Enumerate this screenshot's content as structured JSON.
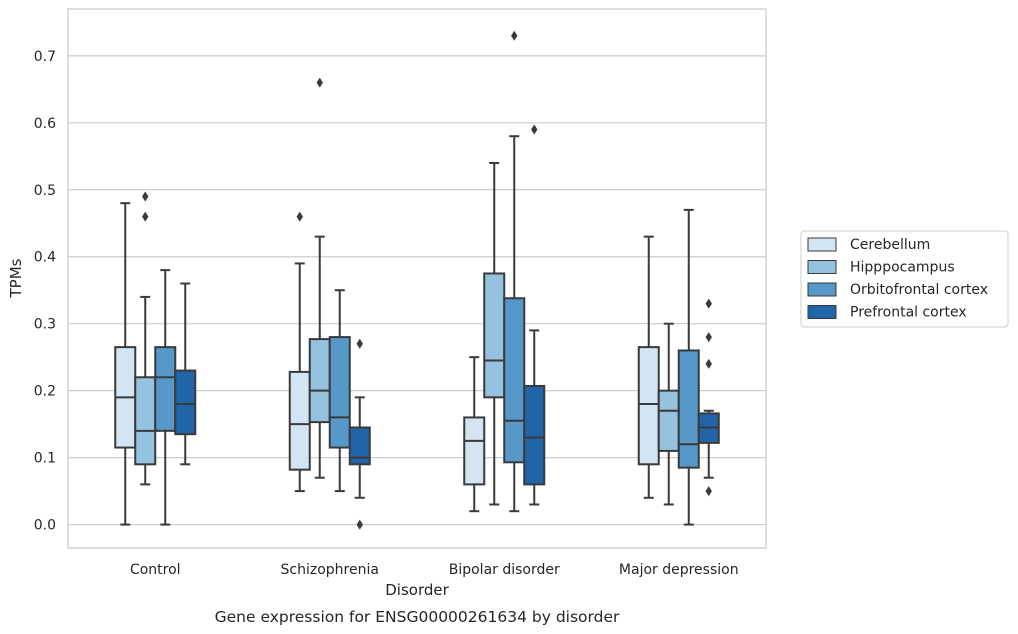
{
  "chart_data": {
    "type": "box",
    "title": "",
    "caption": "Gene expression for ENSG00000261634 by disorder",
    "xlabel": "Disorder",
    "ylabel": "TPMs",
    "ylim": [
      -0.035,
      0.77
    ],
    "yticks": [
      "0.0",
      "0.1",
      "0.2",
      "0.3",
      "0.4",
      "0.5",
      "0.6",
      "0.7"
    ],
    "grid": true,
    "legend_position": "right",
    "categories": [
      "Control",
      "Schizophrenia",
      "Bipolar disorder",
      "Major depression"
    ],
    "series": [
      {
        "name": "Cerebellum",
        "color": "#d3e4f3",
        "boxes": [
          {
            "whisker_low": 0.0,
            "q1": 0.115,
            "median": 0.19,
            "q3": 0.265,
            "whisker_high": 0.48,
            "outliers": []
          },
          {
            "whisker_low": 0.05,
            "q1": 0.082,
            "median": 0.15,
            "q3": 0.228,
            "whisker_high": 0.39,
            "outliers": [
              0.46
            ]
          },
          {
            "whisker_low": 0.02,
            "q1": 0.06,
            "median": 0.125,
            "q3": 0.16,
            "whisker_high": 0.25,
            "outliers": []
          },
          {
            "whisker_low": 0.04,
            "q1": 0.09,
            "median": 0.18,
            "q3": 0.265,
            "whisker_high": 0.43,
            "outliers": []
          }
        ]
      },
      {
        "name": "Hipppocampus",
        "color": "#94c2df",
        "boxes": [
          {
            "whisker_low": 0.06,
            "q1": 0.09,
            "median": 0.14,
            "q3": 0.22,
            "whisker_high": 0.34,
            "outliers": [
              0.46,
              0.49
            ]
          },
          {
            "whisker_low": 0.07,
            "q1": 0.153,
            "median": 0.2,
            "q3": 0.277,
            "whisker_high": 0.43,
            "outliers": [
              0.66
            ]
          },
          {
            "whisker_low": 0.03,
            "q1": 0.19,
            "median": 0.245,
            "q3": 0.375,
            "whisker_high": 0.54,
            "outliers": []
          },
          {
            "whisker_low": 0.03,
            "q1": 0.11,
            "median": 0.17,
            "q3": 0.2,
            "whisker_high": 0.3,
            "outliers": []
          }
        ]
      },
      {
        "name": "Orbitofrontal cortex",
        "color": "#5598c9",
        "boxes": [
          {
            "whisker_low": 0.0,
            "q1": 0.14,
            "median": 0.22,
            "q3": 0.265,
            "whisker_high": 0.38,
            "outliers": []
          },
          {
            "whisker_low": 0.05,
            "q1": 0.115,
            "median": 0.16,
            "q3": 0.28,
            "whisker_high": 0.35,
            "outliers": []
          },
          {
            "whisker_low": 0.02,
            "q1": 0.093,
            "median": 0.155,
            "q3": 0.338,
            "whisker_high": 0.58,
            "outliers": [
              0.73
            ]
          },
          {
            "whisker_low": 0.0,
            "q1": 0.085,
            "median": 0.12,
            "q3": 0.26,
            "whisker_high": 0.47,
            "outliers": []
          }
        ]
      },
      {
        "name": "Prefrontal cortex",
        "color": "#2165a9",
        "boxes": [
          {
            "whisker_low": 0.09,
            "q1": 0.135,
            "median": 0.18,
            "q3": 0.23,
            "whisker_high": 0.36,
            "outliers": []
          },
          {
            "whisker_low": 0.04,
            "q1": 0.09,
            "median": 0.1,
            "q3": 0.145,
            "whisker_high": 0.19,
            "outliers": [
              0.0,
              0.27
            ]
          },
          {
            "whisker_low": 0.03,
            "q1": 0.06,
            "median": 0.13,
            "q3": 0.207,
            "whisker_high": 0.29,
            "outliers": [
              0.59
            ]
          },
          {
            "whisker_low": 0.07,
            "q1": 0.122,
            "median": 0.145,
            "q3": 0.166,
            "whisker_high": 0.17,
            "outliers": [
              0.05,
              0.24,
              0.28,
              0.33
            ]
          }
        ]
      }
    ]
  }
}
